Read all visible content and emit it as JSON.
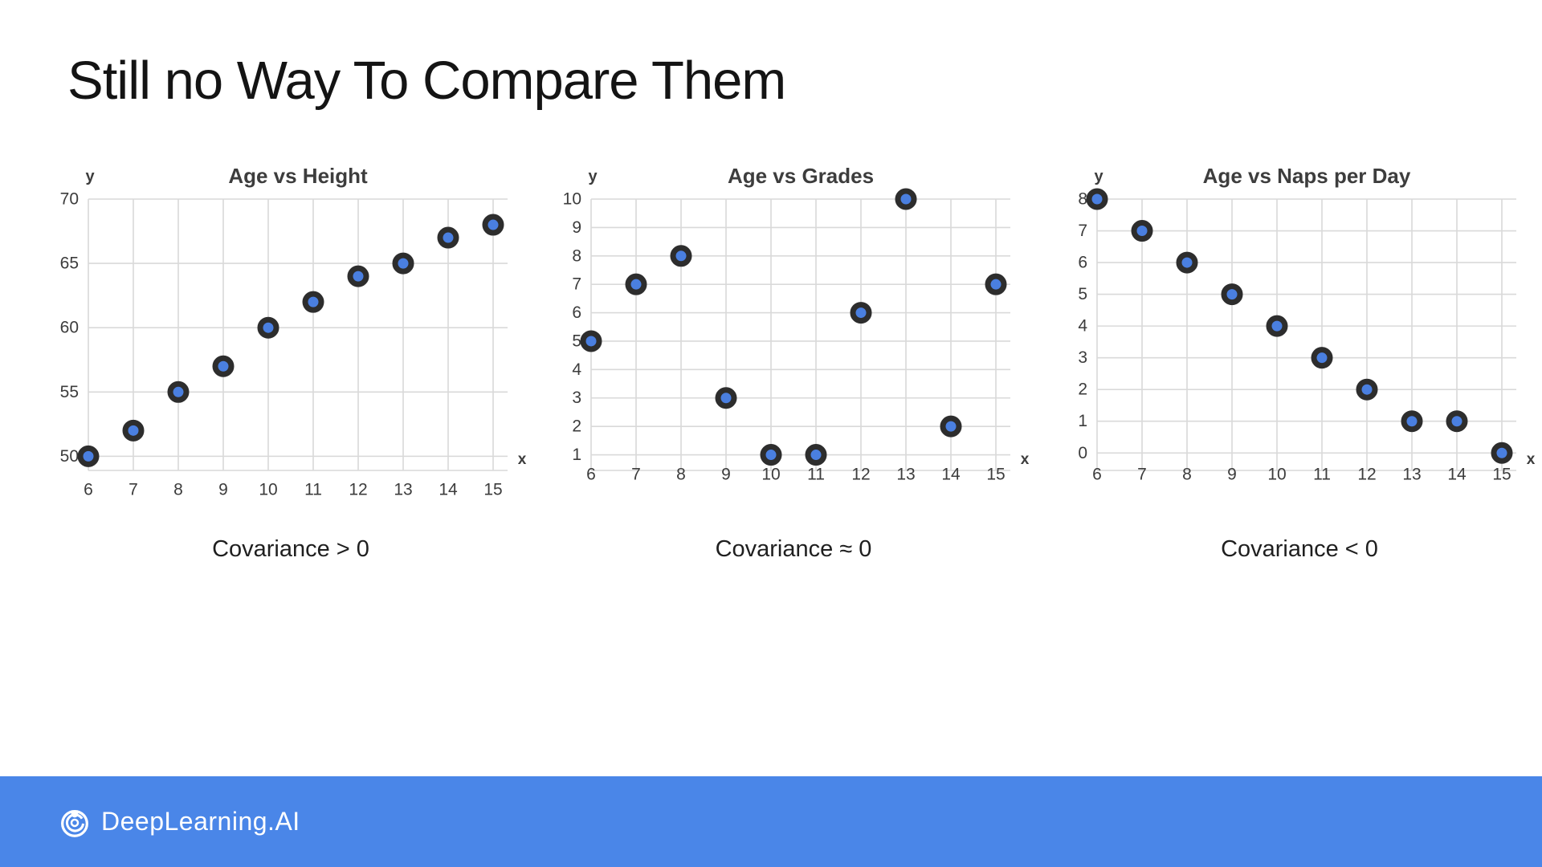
{
  "slide": {
    "title": "Still no Way To Compare Them"
  },
  "chart_data": [
    {
      "type": "scatter",
      "title": "Age vs Height",
      "xlabel": "x",
      "ylabel": "y",
      "caption": "Covariance > 0",
      "x": [
        6,
        7,
        8,
        9,
        10,
        11,
        12,
        13,
        14,
        15
      ],
      "y": [
        50,
        52,
        55,
        57,
        60,
        62,
        64,
        65,
        67,
        68
      ],
      "xticks": [
        6,
        7,
        8,
        9,
        10,
        11,
        12,
        13,
        14,
        15
      ],
      "yticks": [
        50,
        55,
        60,
        65,
        70
      ],
      "xlim": [
        6,
        15.35
      ],
      "ylim": [
        48.9,
        70
      ],
      "grid": true,
      "xtick_labels_on_edge_line": false
    },
    {
      "type": "scatter",
      "title": "Age vs Grades",
      "xlabel": "x",
      "ylabel": "y",
      "caption": "Covariance ≈ 0",
      "x": [
        6,
        7,
        8,
        9,
        10,
        11,
        12,
        13,
        14,
        15
      ],
      "y": [
        5,
        7,
        8,
        3,
        1,
        1,
        6,
        10,
        2,
        7
      ],
      "xticks": [
        6,
        7,
        8,
        9,
        10,
        11,
        12,
        13,
        14,
        15
      ],
      "yticks": [
        1,
        2,
        3,
        4,
        5,
        6,
        7,
        8,
        9,
        10
      ],
      "xlim": [
        6,
        15.35
      ],
      "ylim": [
        0.45,
        10
      ],
      "grid": true,
      "xtick_labels_on_edge_line": true
    },
    {
      "type": "scatter",
      "title": "Age vs Naps per Day",
      "xlabel": "x",
      "ylabel": "y",
      "caption": "Covariance < 0",
      "x": [
        6,
        7,
        8,
        9,
        10,
        11,
        12,
        13,
        14,
        15
      ],
      "y": [
        8,
        7,
        6,
        5,
        4,
        3,
        2,
        1,
        1,
        0
      ],
      "xticks": [
        6,
        7,
        8,
        9,
        10,
        11,
        12,
        13,
        14,
        15
      ],
      "yticks": [
        0,
        1,
        2,
        3,
        4,
        5,
        6,
        7,
        8
      ],
      "xlim": [
        6,
        15.35
      ],
      "ylim": [
        -0.55,
        8
      ],
      "grid": true,
      "xtick_labels_on_edge_line": true
    }
  ],
  "footer": {
    "brand": "DeepLearning.AI"
  },
  "colors": {
    "footer_blue": "#4a86e8",
    "point_fill": "#4a7fe0",
    "point_ring": "#2d2d2d",
    "grid": "#d9d9d9",
    "chart_title_text": "#3d3d3d",
    "tick_text": "#3c3c3c",
    "caption_text": "#1f1f1f"
  }
}
